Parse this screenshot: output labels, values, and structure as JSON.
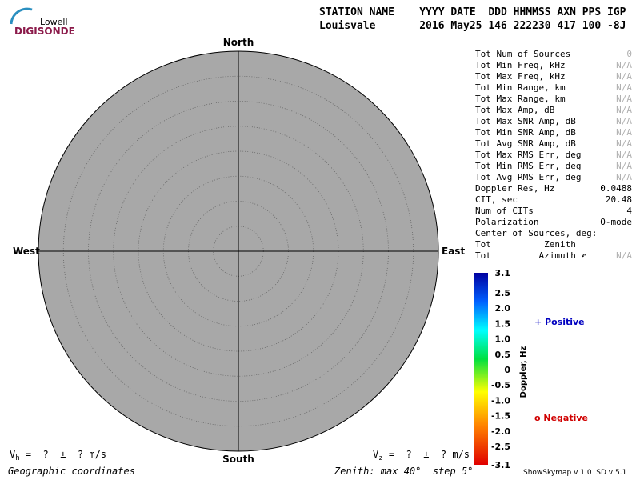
{
  "logo": {
    "top": "Lowell",
    "bottom": "DIGISONDE"
  },
  "header": {
    "line1": "STATION NAME    YYYY DATE  DDD HHMMSS AXN PPS IGP",
    "line2": "Louisvale       2016 May25 146 222230 417 100 -8J"
  },
  "compass": {
    "north": "North",
    "south": "South",
    "east": "East",
    "west": "West"
  },
  "stats": [
    {
      "label": "Tot Num of Sources",
      "value": "0",
      "na": true
    },
    {
      "label": "Tot Min Freq, kHz",
      "value": "N/A",
      "na": true
    },
    {
      "label": "Tot Max Freq, kHz",
      "value": "N/A",
      "na": true
    },
    {
      "label": "Tot Min Range, km",
      "value": "N/A",
      "na": true
    },
    {
      "label": "Tot Max Range, km",
      "value": "N/A",
      "na": true
    },
    {
      "label": "Tot Max Amp, dB",
      "value": "N/A",
      "na": true
    },
    {
      "label": "Tot Max SNR Amp, dB",
      "value": "N/A",
      "na": true
    },
    {
      "label": "Tot Min SNR Amp, dB",
      "value": "N/A",
      "na": true
    },
    {
      "label": "Tot Avg SNR Amp, dB",
      "value": "N/A",
      "na": true
    },
    {
      "label": "Tot Max RMS Err, deg",
      "value": "N/A",
      "na": true
    },
    {
      "label": "Tot Min RMS Err, deg",
      "value": "N/A",
      "na": true
    },
    {
      "label": "Tot Avg RMS Err, deg",
      "value": "N/A",
      "na": true
    },
    {
      "label": "Doppler Res, Hz",
      "value": "0.0488",
      "na": false
    },
    {
      "label": "CIT, sec",
      "value": "20.48",
      "na": false
    },
    {
      "label": "Num of CITs",
      "value": "4",
      "na": false
    },
    {
      "label": "Polarization",
      "value": "O-mode",
      "na": false
    },
    {
      "label": "Center of Sources, deg:"
    },
    {
      "label": "Tot          Zenith"
    },
    {
      "label": "Tot         Azimuth ↶",
      "value": "N/A",
      "na": true
    }
  ],
  "colorbar": {
    "label": "Doppler, Hz",
    "ticks": [
      "3.1",
      "2.5",
      "2.0",
      "1.5",
      "1.0",
      "0.5",
      "0",
      "-0.5",
      "-1.0",
      "-1.5",
      "-2.0",
      "-2.5",
      "-3.1"
    ]
  },
  "legend": {
    "positive": "+ Positive",
    "negative": "o Negative"
  },
  "velocity": {
    "vh_symbol": "V",
    "vh_sub": "h",
    "vh_text": " =  ?  ±  ? m/s",
    "vz_symbol": "V",
    "vz_sub": "z",
    "vz_text": " =  ?  ±  ? m/s"
  },
  "footer": {
    "left": "Geographic coordinates",
    "center": "Zenith: max 40°  step 5°",
    "right": "ShowSkymap v 1.0  SD v 5.1"
  }
}
